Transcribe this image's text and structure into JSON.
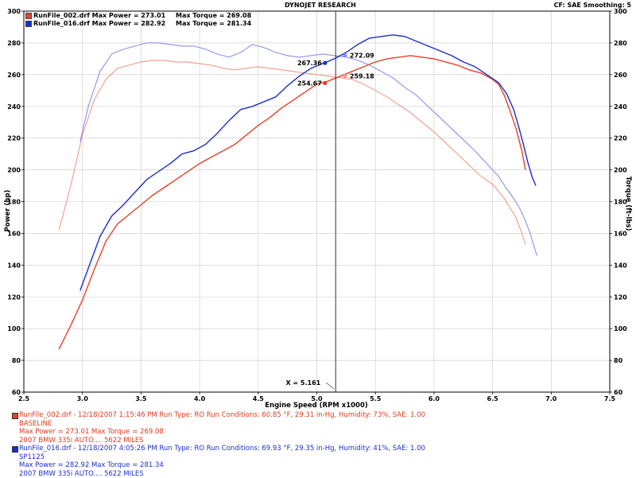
{
  "header": {
    "title": "DYNOJET RESEARCH",
    "right": "CF: SAE  Smoothing: 5"
  },
  "legend": [
    {
      "file": "RunFile_002.drf",
      "max_power_label": "Max Power = 273.01",
      "max_torque_label": "Max Torque = 269.08",
      "color": "#e8402a"
    },
    {
      "file": "RunFile_016.drf",
      "max_power_label": "Max Power = 282.92",
      "max_torque_label": "Max Torque = 281.34",
      "color": "#1a2ecf"
    }
  ],
  "runs": [
    {
      "line1": "RunFile_002.drf - 12/18/2007 1:15:46 PM  Run Type: RO  Run Conditions: 60.85 °F, 29.31 in-Hg,  Humidity:  73%, SAE: 1.00",
      "line2": "BASELINE",
      "line3": "Max Power = 273.01  Max Torque = 269.08",
      "line4": "2007 BMW 335i AUTO.... 5622 MILES",
      "color": "#e03a1c"
    },
    {
      "line1": "RunFile_016.drf - 12/18/2007 4:05:26 PM  Run Type: RO  Run Conditions: 69.93 °F, 29.35 in-Hg,  Humidity:  41%, SAE: 1.00",
      "line2": "SP1125",
      "line3": "Max Power = 282.92  Max Torque = 281.34",
      "line4": "2007 BMW 335i AUTO.... 5622 MILES",
      "color": "#1f2fc8"
    }
  ],
  "chart_data": {
    "type": "line",
    "xlabel": "Engine Speed (RPM x1000)",
    "ylabel": "Power (hp)",
    "y2label": "Torque (ft-lbs)",
    "xlim": [
      2.5,
      7.5
    ],
    "ylim": [
      60,
      300
    ],
    "xticks": [
      "2.5",
      "3.0",
      "3.5",
      "4.0",
      "4.5",
      "5.0",
      "5.5",
      "6.0",
      "6.5",
      "7.0",
      "7.5"
    ],
    "yticks": [
      "60",
      "80",
      "100",
      "120",
      "140",
      "160",
      "180",
      "200",
      "220",
      "240",
      "260",
      "280",
      "300"
    ],
    "grid": true,
    "cursor": {
      "x": 5.161,
      "label": "X = 5.161"
    },
    "markers": [
      {
        "x": 5.07,
        "y": 267.36,
        "label": "267.36",
        "color": "#1a2ecf"
      },
      {
        "x": 5.24,
        "y": 272.09,
        "label": "272.09",
        "color": "#8a8ff0"
      },
      {
        "x": 5.07,
        "y": 254.67,
        "label": "254.67",
        "color": "#e8402a"
      },
      {
        "x": 5.24,
        "y": 259.18,
        "label": "259.18",
        "color": "#f09a88"
      }
    ],
    "series": [
      {
        "name": "RunFile_016.drf Power",
        "color": "#1a2ecf",
        "width": 1.4,
        "x": [
          2.98,
          3.05,
          3.15,
          3.25,
          3.35,
          3.45,
          3.55,
          3.65,
          3.75,
          3.85,
          3.95,
          4.05,
          4.15,
          4.25,
          4.35,
          4.45,
          4.55,
          4.65,
          4.75,
          4.85,
          4.95,
          5.05,
          5.15,
          5.25,
          5.35,
          5.45,
          5.55,
          5.65,
          5.75,
          5.85,
          5.95,
          6.05,
          6.15,
          6.25,
          6.35,
          6.45,
          6.55,
          6.62,
          6.68,
          6.72,
          6.76,
          6.8,
          6.84,
          6.87
        ],
        "y": [
          124,
          138,
          158,
          171,
          178,
          186,
          194,
          199,
          204,
          210,
          212,
          216,
          223,
          231,
          238,
          240,
          243,
          246,
          253,
          259,
          264,
          267,
          270,
          274,
          279,
          283,
          284,
          285,
          284,
          281,
          278,
          275,
          272,
          268,
          265,
          260,
          255,
          248,
          238,
          228,
          217,
          205,
          195,
          190
        ]
      },
      {
        "name": "RunFile_002.drf Power",
        "color": "#e8402a",
        "width": 1.4,
        "x": [
          2.8,
          2.9,
          3.0,
          3.1,
          3.2,
          3.3,
          3.4,
          3.5,
          3.6,
          3.7,
          3.8,
          3.9,
          4.0,
          4.1,
          4.2,
          4.3,
          4.4,
          4.5,
          4.6,
          4.7,
          4.8,
          4.9,
          5.0,
          5.1,
          5.2,
          5.3,
          5.4,
          5.5,
          5.6,
          5.7,
          5.8,
          5.9,
          6.0,
          6.1,
          6.2,
          6.3,
          6.4,
          6.5,
          6.55,
          6.6,
          6.65,
          6.7,
          6.75,
          6.78
        ],
        "y": [
          87,
          102,
          118,
          137,
          155,
          166,
          172,
          178,
          184,
          189,
          194,
          199,
          204,
          208,
          212,
          216,
          222,
          228,
          233,
          239,
          244,
          249,
          254,
          256,
          259,
          262,
          265,
          268,
          270,
          271,
          272,
          271,
          270,
          268,
          266,
          263,
          261,
          257,
          254,
          247,
          237,
          226,
          212,
          200
        ]
      },
      {
        "name": "RunFile_016.drf Torque",
        "color": "#8a8ff0",
        "width": 1.1,
        "x": [
          2.98,
          3.05,
          3.15,
          3.25,
          3.35,
          3.45,
          3.55,
          3.65,
          3.75,
          3.85,
          3.95,
          4.05,
          4.15,
          4.25,
          4.35,
          4.45,
          4.55,
          4.65,
          4.75,
          4.85,
          4.95,
          5.05,
          5.15,
          5.25,
          5.35,
          5.45,
          5.55,
          5.65,
          5.75,
          5.85,
          5.95,
          6.05,
          6.15,
          6.25,
          6.35,
          6.45,
          6.55,
          6.62,
          6.68,
          6.73,
          6.78,
          6.82,
          6.86,
          6.88
        ],
        "y": [
          218,
          240,
          262,
          273,
          276,
          278,
          280,
          280,
          279,
          278,
          278,
          276,
          273,
          271,
          274,
          279,
          277,
          274,
          272,
          271,
          272,
          273,
          272,
          271,
          269,
          266,
          262,
          258,
          252,
          247,
          240,
          233,
          226,
          219,
          212,
          204,
          196,
          188,
          182,
          176,
          168,
          160,
          150,
          146
        ]
      },
      {
        "name": "RunFile_002.drf Torque",
        "color": "#f09a88",
        "width": 1.1,
        "x": [
          2.8,
          2.9,
          3.0,
          3.1,
          3.2,
          3.3,
          3.4,
          3.5,
          3.6,
          3.7,
          3.8,
          3.9,
          4.0,
          4.1,
          4.2,
          4.3,
          4.4,
          4.5,
          4.6,
          4.7,
          4.8,
          4.9,
          5.0,
          5.1,
          5.2,
          5.3,
          5.4,
          5.5,
          5.6,
          5.7,
          5.8,
          5.9,
          6.0,
          6.1,
          6.2,
          6.3,
          6.4,
          6.5,
          6.6,
          6.65,
          6.7,
          6.73,
          6.76,
          6.78
        ],
        "y": [
          162,
          190,
          222,
          244,
          257,
          264,
          266,
          268,
          269,
          269,
          268,
          268,
          267,
          266,
          264,
          263,
          264,
          265,
          264,
          263,
          262,
          261,
          260,
          259,
          258,
          257,
          254,
          250,
          246,
          241,
          236,
          230,
          224,
          217,
          210,
          203,
          196,
          191,
          182,
          176,
          170,
          164,
          158,
          153
        ]
      }
    ]
  }
}
